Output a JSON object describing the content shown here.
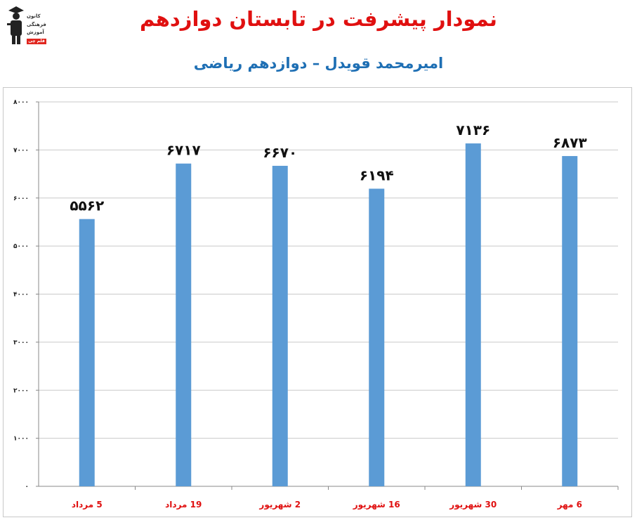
{
  "logo": {
    "name": "logo-icon",
    "line1": "کانون",
    "line2": "فرهنگی",
    "line3": "آموزش",
    "badge": "قلم چی"
  },
  "title": "نمودار پیشرفت در تابستان دوازدهم",
  "subtitle": "امیرمحمد قویدل – دوازدهم ریاضی",
  "colors": {
    "title": "#e01010",
    "subtitle": "#1e6fb4",
    "bar": "#5b9bd5",
    "category_label": "#e01010",
    "grid": "#c9c9c9"
  },
  "chart_data": {
    "type": "bar",
    "categories": [
      "5 مرداد",
      "19 مرداد",
      "2 شهریور",
      "16 شهریور",
      "30 شهریور",
      "6 مهر"
    ],
    "values": [
      5562,
      6717,
      6670,
      6194,
      7136,
      6873
    ],
    "value_labels": [
      "۵۵۶۲",
      "۶۷۱۷",
      "۶۶۷۰",
      "۶۱۹۴",
      "۷۱۳۶",
      "۶۸۷۳"
    ],
    "ylim": [
      0,
      8000
    ],
    "y_ticks": [
      0,
      1000,
      2000,
      3000,
      4000,
      5000,
      6000,
      7000,
      8000
    ],
    "y_tick_labels": [
      "۰",
      "۱۰۰۰",
      "۲۰۰۰",
      "۳۰۰۰",
      "۴۰۰۰",
      "۵۰۰۰",
      "۶۰۰۰",
      "۷۰۰۰",
      "۸۰۰۰"
    ],
    "grid": true,
    "title": "",
    "xlabel": "",
    "ylabel": ""
  }
}
